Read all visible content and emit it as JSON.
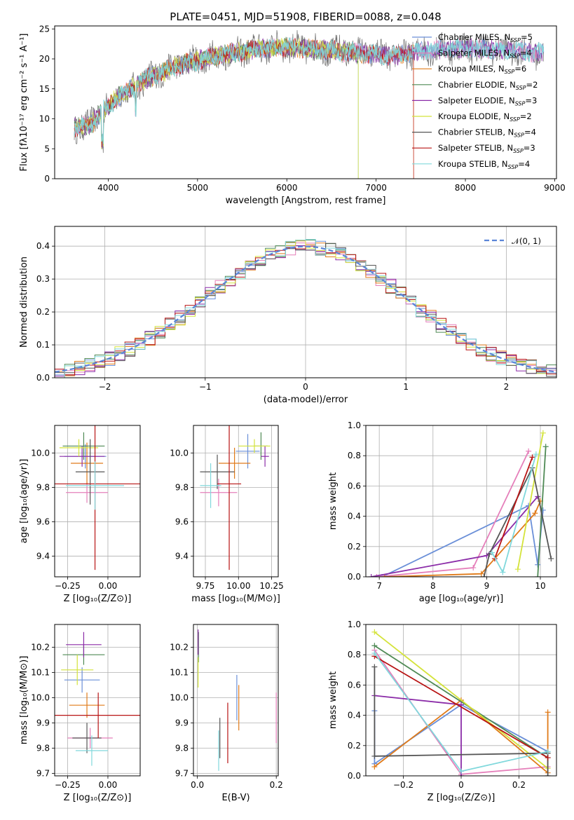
{
  "colors": [
    "#6a8fd8",
    "#e57fba",
    "#e07b1a",
    "#4f8a55",
    "#8b2ca8",
    "#d4e33a",
    "#555555",
    "#b81414",
    "#80d8dc"
  ],
  "chart_data": [
    {
      "id": "spectrum",
      "type": "line",
      "title": "PLATE=0451, MJD=51908, FIBERID=0088, z=0.048",
      "xlabel": "wavelength [Angstrom, rest frame]",
      "ylabel": "Flux [fλ10⁻¹⁷ erg cm⁻² s⁻¹ A⁻¹]",
      "xlim": [
        3400,
        9020
      ],
      "ylim": [
        0,
        25.5
      ],
      "xticks": [
        4000,
        5000,
        6000,
        7000,
        8000,
        9000
      ],
      "yticks": [
        0,
        5,
        10,
        15,
        20,
        25
      ],
      "continuum": {
        "x": [
          3620,
          3800,
          3950,
          4100,
          4400,
          4800,
          5200,
          5600,
          6000,
          6400,
          6800,
          7200,
          7400,
          7600,
          8000,
          8400,
          8800,
          8900
        ],
        "y": [
          8.5,
          9,
          11.5,
          13.5,
          16.5,
          19,
          20.5,
          21.5,
          22,
          21.5,
          21,
          20.5,
          21,
          21.5,
          21.8,
          21.5,
          21,
          21
        ]
      },
      "legend": [
        {
          "text": "Chabrier MILES, N",
          "sub": "SSP",
          "tail": "=5"
        },
        {
          "text": "Salpeter MILES, N",
          "sub": "SSP",
          "tail": "=4"
        },
        {
          "text": "Kroupa MILES, N",
          "sub": "SSP",
          "tail": "=6"
        },
        {
          "text": "Chabrier ELODIE, N",
          "sub": "SSP",
          "tail": "=2"
        },
        {
          "text": "Salpeter ELODIE, N",
          "sub": "SSP",
          "tail": "=3"
        },
        {
          "text": "Kroupa ELODIE, N",
          "sub": "SSP",
          "tail": "=2"
        },
        {
          "text": "Chabrier STELIB, N",
          "sub": "SSP",
          "tail": "=4"
        },
        {
          "text": "Salpeter STELIB, N",
          "sub": "SSP",
          "tail": "=3"
        },
        {
          "text": "Kroupa STELIB, N",
          "sub": "SSP",
          "tail": "=4"
        }
      ]
    },
    {
      "id": "residuals",
      "type": "step",
      "xlabel": "(data-model)/error",
      "ylabel": "Normed distribution",
      "xlim": [
        -2.5,
        2.5
      ],
      "ylim": [
        0,
        0.46
      ],
      "xticks": [
        -2,
        -1,
        0,
        1,
        2
      ],
      "yticks": [
        0.0,
        0.1,
        0.2,
        0.3,
        0.4
      ],
      "bin_width": 0.1,
      "legend": "𝒩(0, 1)",
      "grid": true
    },
    {
      "id": "age-vs-Z",
      "type": "errorbar",
      "xlabel": "Z [log₁₀(Z/Z⊙)]",
      "ylabel": "age  [log₁₀(age/yr)]",
      "xlim": [
        -0.33,
        0.2
      ],
      "ylim": [
        9.28,
        10.16
      ],
      "xticks": [
        -0.25,
        0.0
      ],
      "yticks": [
        9.4,
        9.6,
        9.8,
        10.0
      ],
      "grid": true,
      "points": [
        {
          "x": -0.14,
          "xerr": 0.13,
          "y": 9.98,
          "yerr": 0.07
        },
        {
          "x": -0.13,
          "xerr": 0.13,
          "y": 9.77,
          "yerr": 0.06
        },
        {
          "x": -0.13,
          "xerr": 0.1,
          "y": 9.94,
          "yerr": 0.12
        },
        {
          "x": -0.15,
          "xerr": 0.13,
          "y": 10.04,
          "yerr": 0.08
        },
        {
          "x": -0.16,
          "xerr": 0.14,
          "y": 9.98,
          "yerr": 0.06
        },
        {
          "x": -0.18,
          "xerr": 0.12,
          "y": 10.03,
          "yerr": 0.05
        },
        {
          "x": -0.11,
          "xerr": 0.09,
          "y": 9.89,
          "yerr": 0.19
        },
        {
          "x": -0.08,
          "xerr": 0.28,
          "y": 9.82,
          "yerr": 0.5
        },
        {
          "x": -0.08,
          "xerr": 0.18,
          "y": 9.81,
          "yerr": 0.14
        }
      ]
    },
    {
      "id": "age-vs-mass",
      "type": "errorbar",
      "xlabel": "mass [log₁₀(M/M⊙)]",
      "xlim": [
        9.66,
        10.3
      ],
      "ylim": [
        9.28,
        10.16
      ],
      "xticks": [
        9.75,
        10.0,
        10.25
      ],
      "yticks": [
        9.4,
        9.6,
        9.8,
        10.0
      ],
      "grid": true,
      "points": [
        {
          "x": 10.07,
          "xerr": 0.09,
          "y": 10.01,
          "yerr": 0.1
        },
        {
          "x": 9.85,
          "xerr": 0.14,
          "y": 9.77,
          "yerr": 0.08
        },
        {
          "x": 9.97,
          "xerr": 0.12,
          "y": 9.94,
          "yerr": 0.09
        },
        {
          "x": 10.17,
          "xerr": 0.05,
          "y": 10.04,
          "yerr": 0.08
        },
        {
          "x": 10.2,
          "xerr": 0.03,
          "y": 9.98,
          "yerr": 0.06
        },
        {
          "x": 10.12,
          "xerr": 0.12,
          "y": 10.04,
          "yerr": 0.04
        },
        {
          "x": 9.84,
          "xerr": 0.13,
          "y": 9.89,
          "yerr": 0.1
        },
        {
          "x": 9.93,
          "xerr": 0.09,
          "y": 9.82,
          "yerr": 0.5
        },
        {
          "x": 9.79,
          "xerr": 0.08,
          "y": 9.81,
          "yerr": 0.13
        }
      ]
    },
    {
      "id": "massweight-vs-age",
      "type": "line",
      "xlabel": "age  [log₁₀(age/yr)]",
      "ylabel": "mass weight",
      "xlim": [
        6.75,
        10.3
      ],
      "ylim": [
        0,
        1.0
      ],
      "xticks": [
        7,
        8,
        9,
        10
      ],
      "yticks": [
        0.0,
        0.2,
        0.4,
        0.6,
        0.8,
        1.0
      ],
      "grid": true,
      "series": [
        {
          "points": [
            [
              7.05,
              0.0
            ],
            [
              9.78,
              0.47
            ],
            [
              9.95,
              0.08
            ],
            [
              10.05,
              0.44
            ]
          ]
        },
        {
          "points": [
            [
              6.95,
              0.0
            ],
            [
              8.75,
              0.06
            ],
            [
              9.78,
              0.83
            ]
          ]
        },
        {
          "points": [
            [
              7.1,
              0.0
            ],
            [
              8.9,
              0.02
            ],
            [
              9.9,
              0.42
            ],
            [
              10.0,
              0.5
            ]
          ]
        },
        {
          "points": [
            [
              9.95,
              0.0
            ],
            [
              10.1,
              0.86
            ]
          ]
        },
        {
          "points": [
            [
              6.85,
              0.0
            ],
            [
              9.0,
              0.14
            ],
            [
              9.95,
              0.53
            ]
          ]
        },
        {
          "points": [
            [
              9.58,
              0.05
            ],
            [
              10.05,
              0.95
            ]
          ]
        },
        {
          "points": [
            [
              8.95,
              0.0
            ],
            [
              9.05,
              0.15
            ],
            [
              9.85,
              0.72
            ],
            [
              10.2,
              0.12
            ]
          ]
        },
        {
          "points": [
            [
              9.15,
              0.12
            ],
            [
              9.85,
              0.79
            ]
          ]
        },
        {
          "points": [
            [
              9.1,
              0.16
            ],
            [
              9.3,
              0.03
            ],
            [
              9.92,
              0.81
            ]
          ]
        }
      ]
    },
    {
      "id": "mass-vs-Z",
      "type": "errorbar",
      "xlabel": "Z [log₁₀(Z/Z⊙)]",
      "ylabel": "mass [log₁₀(M/M⊙)]",
      "xlim": [
        -0.33,
        0.2
      ],
      "ylim": [
        9.69,
        10.29
      ],
      "xticks": [
        -0.25,
        0.0
      ],
      "yticks": [
        9.7,
        9.8,
        9.9,
        10.0,
        10.1,
        10.2
      ],
      "grid": true,
      "points": [
        {
          "x": -0.16,
          "xerr": 0.11,
          "y": 10.07,
          "yerr": 0.05
        },
        {
          "x": -0.11,
          "xerr": 0.14,
          "y": 9.84,
          "yerr": 0.04
        },
        {
          "x": -0.13,
          "xerr": 0.11,
          "y": 9.97,
          "yerr": 0.05
        },
        {
          "x": -0.15,
          "xerr": 0.13,
          "y": 10.17,
          "yerr": 0.04
        },
        {
          "x": -0.15,
          "xerr": 0.11,
          "y": 10.21,
          "yerr": 0.05
        },
        {
          "x": -0.19,
          "xerr": 0.1,
          "y": 10.11,
          "yerr": 0.06
        },
        {
          "x": -0.13,
          "xerr": 0.09,
          "y": 9.84,
          "yerr": 0.06
        },
        {
          "x": -0.06,
          "xerr": 0.27,
          "y": 9.93,
          "yerr": 0.09
        },
        {
          "x": -0.1,
          "xerr": 0.1,
          "y": 9.79,
          "yerr": 0.06
        }
      ]
    },
    {
      "id": "mass-vs-EBV",
      "type": "errorbar",
      "xlabel": "E(B-V)",
      "xlim": [
        -0.01,
        0.205
      ],
      "ylim": [
        9.69,
        10.29
      ],
      "xticks": [
        0.0,
        0.2
      ],
      "yticks": [
        9.7,
        9.8,
        9.9,
        10.0,
        10.1,
        10.2
      ],
      "grid": true,
      "points": [
        {
          "x": 0.1,
          "xerr": 0,
          "y": 10.0,
          "yerr": 0.09
        },
        {
          "x": 0.2,
          "xerr": 0,
          "y": 9.92,
          "yerr": 0.1
        },
        {
          "x": 0.105,
          "xerr": 0,
          "y": 9.96,
          "yerr": 0.09
        },
        {
          "x": 0.003,
          "xerr": 0,
          "y": 10.2,
          "yerr": 0.06
        },
        {
          "x": 0.002,
          "xerr": 0,
          "y": 10.22,
          "yerr": 0.05
        },
        {
          "x": 0.002,
          "xerr": 0,
          "y": 10.1,
          "yerr": 0.06
        },
        {
          "x": 0.057,
          "xerr": 0,
          "y": 9.84,
          "yerr": 0.08
        },
        {
          "x": 0.077,
          "xerr": 0,
          "y": 9.86,
          "yerr": 0.12
        },
        {
          "x": 0.054,
          "xerr": 0,
          "y": 9.79,
          "yerr": 0.08
        }
      ]
    },
    {
      "id": "massweight-vs-Z",
      "type": "line",
      "xlabel": "Z [log₁₀(Z/Z⊙)]",
      "ylabel": "mass weight",
      "xlim": [
        -0.33,
        0.33
      ],
      "ylim": [
        0,
        1.0
      ],
      "xticks": [
        -0.2,
        0.0,
        0.2
      ],
      "yticks": [
        0.0,
        0.2,
        0.4,
        0.6,
        0.8,
        1.0
      ],
      "grid": true,
      "series": [
        {
          "points": [
            [
              -0.3,
              0.43
            ],
            [
              -0.3,
              0.08
            ],
            [
              0.0,
              0.47
            ],
            [
              0.3,
              0.16
            ]
          ]
        },
        {
          "points": [
            [
              -0.3,
              0.83
            ],
            [
              0.0,
              0.01
            ],
            [
              0.3,
              0.06
            ]
          ]
        },
        {
          "points": [
            [
              -0.3,
              0.06
            ],
            [
              0.0,
              0.5
            ],
            [
              0.3,
              0.02
            ],
            [
              0.3,
              0.42
            ]
          ]
        },
        {
          "points": [
            [
              -0.3,
              0.86
            ],
            [
              0.3,
              0.12
            ]
          ]
        },
        {
          "points": [
            [
              -0.3,
              0.53
            ],
            [
              0.0,
              0.47
            ],
            [
              0.0,
              0.0
            ]
          ]
        },
        {
          "points": [
            [
              -0.3,
              0.95
            ],
            [
              0.3,
              0.05
            ]
          ]
        },
        {
          "points": [
            [
              -0.3,
              0.72
            ],
            [
              -0.3,
              0.13
            ],
            [
              0.3,
              0.15
            ],
            [
              0.3,
              0.0
            ]
          ]
        },
        {
          "points": [
            [
              -0.3,
              0.79
            ],
            [
              0.3,
              0.12
            ]
          ]
        },
        {
          "points": [
            [
              -0.3,
              0.81
            ],
            [
              0.0,
              0.03
            ],
            [
              0.3,
              0.16
            ]
          ]
        }
      ]
    }
  ]
}
